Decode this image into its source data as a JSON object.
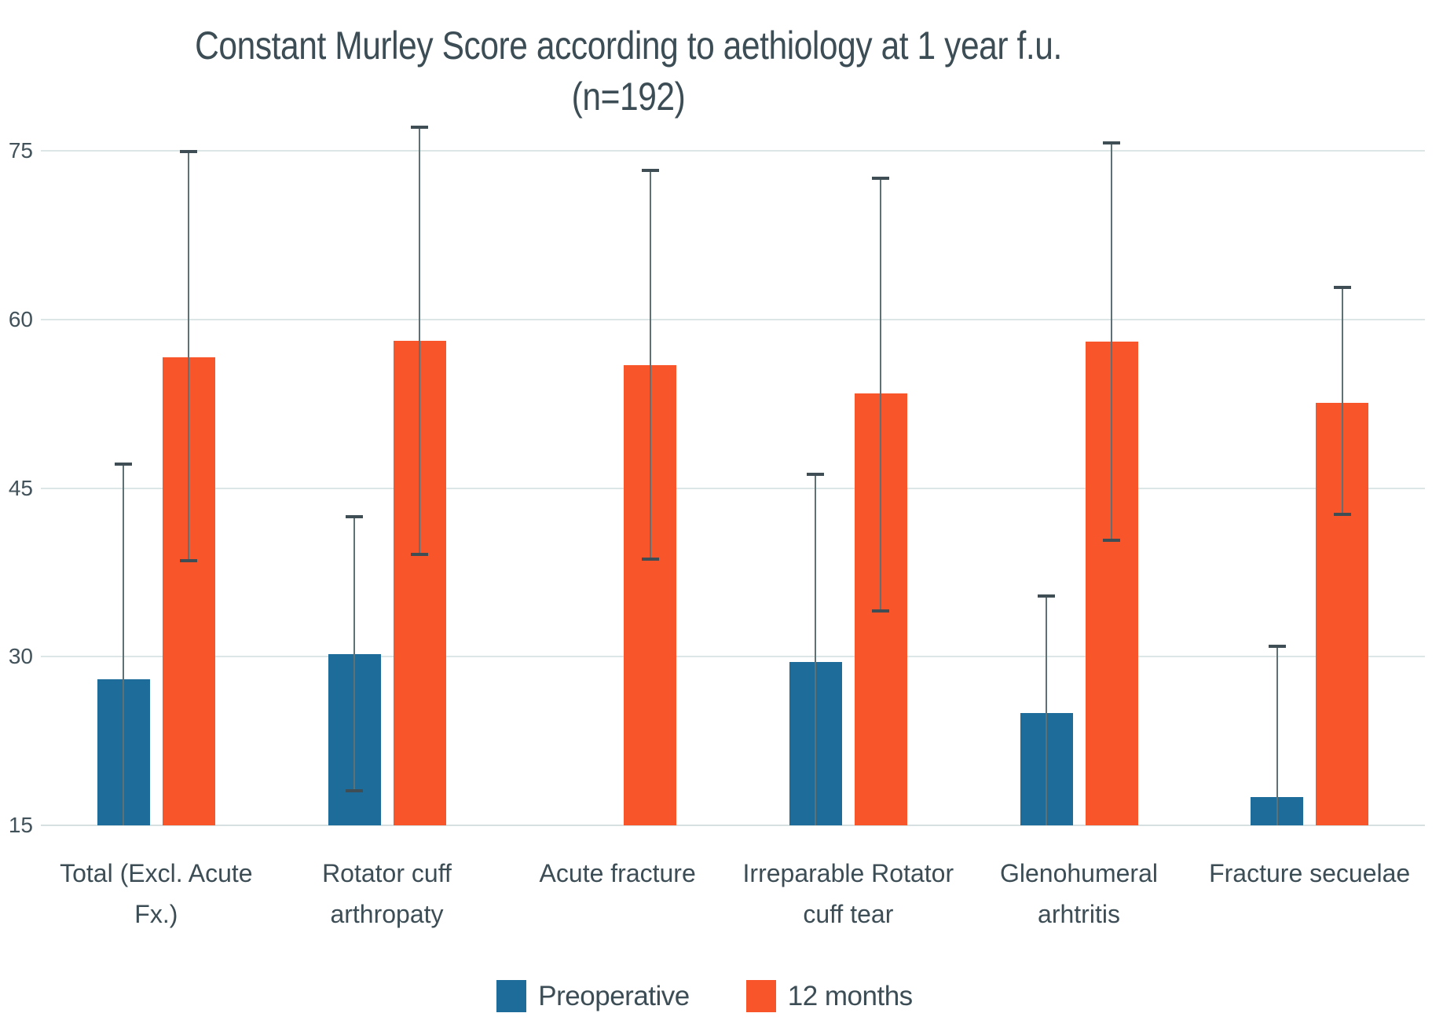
{
  "chart_data": {
    "type": "bar",
    "title": "Constant Murley Score according to aethiology at 1 year f.u.",
    "subtitle": "(n=192)",
    "categories": [
      "Total (Excl. Acute Fx.)",
      "Rotator cuff arthropaty",
      "Acute fracture",
      "Irreparable Rotator cuff tear",
      "Glenohumeral arhtritis",
      "Fracture secuelae"
    ],
    "series": [
      {
        "name": "Preoperative",
        "color": "#1E6C99",
        "values": [
          28,
          30.2,
          null,
          29.5,
          25,
          17.5
        ],
        "error_high": [
          47.2,
          42.5,
          null,
          46.3,
          35.5,
          31
        ],
        "error_low": [
          null,
          18,
          null,
          null,
          null,
          null
        ]
      },
      {
        "name": "12 months",
        "color": "#F8562A",
        "values": [
          56.6,
          58.1,
          55.9,
          53.4,
          58,
          52.6
        ],
        "error_high": [
          75,
          77.2,
          73.3,
          72.6,
          75.8,
          62.9
        ],
        "error_low": [
          38.5,
          39,
          38.6,
          34,
          40.3,
          42.6
        ]
      }
    ],
    "yticks": [
      15,
      30,
      45,
      60,
      75
    ],
    "ylim": [
      15,
      78
    ],
    "grid": true,
    "legend_position": "bottom",
    "xlabel": "",
    "ylabel": ""
  },
  "colors": {
    "gridline": "#DDE6E7",
    "baseline": "#D6E0E0",
    "error_line": "#5E7276",
    "error_cap": "#3F4E54",
    "text": "#3C4D55"
  }
}
